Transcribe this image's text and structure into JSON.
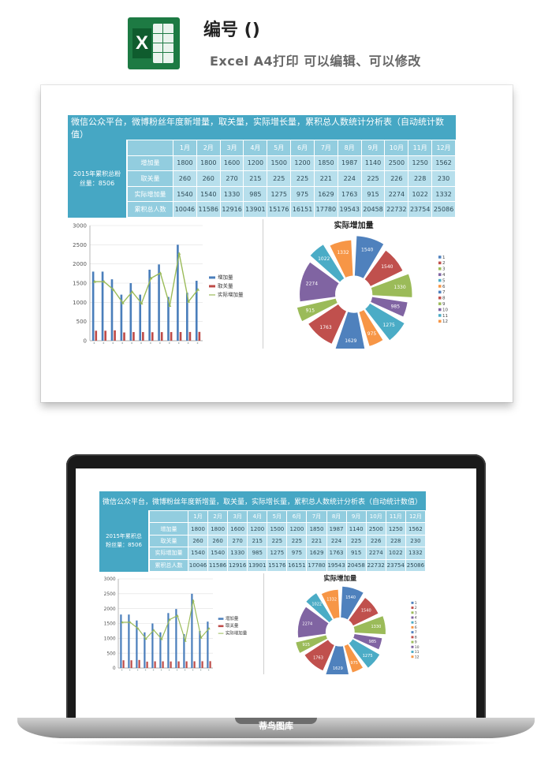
{
  "header": {
    "title": "编号 ()",
    "subtitle": "Excel A4打印 可以编辑、可以修改",
    "logo_letter": "X"
  },
  "sheet": {
    "banner": "微信公众平台，微博粉丝年度新增量，取关量，实际增长量，累积总人数统计分析表（自动统计数值）",
    "left_label": "2015年累积总粉丝量：8506",
    "months": [
      "1月",
      "2月",
      "3月",
      "4月",
      "5月",
      "6月",
      "7月",
      "8月",
      "9月",
      "10月",
      "11月",
      "12月"
    ],
    "rows": [
      {
        "label": "增加量",
        "values": [
          "1800",
          "1800",
          "1600",
          "1200",
          "1500",
          "1200",
          "1850",
          "1987",
          "1140",
          "2500",
          "1250",
          "1562"
        ]
      },
      {
        "label": "取关量",
        "values": [
          "260",
          "260",
          "270",
          "215",
          "225",
          "225",
          "221",
          "224",
          "225",
          "226",
          "228",
          "230"
        ]
      },
      {
        "label": "实际增加量",
        "values": [
          "1540",
          "1540",
          "1330",
          "985",
          "1275",
          "975",
          "1629",
          "1763",
          "915",
          "2274",
          "1022",
          "1332"
        ]
      },
      {
        "label": "累积总人数",
        "values": [
          "10046",
          "11586",
          "12916",
          "13901",
          "15176",
          "16151",
          "17780",
          "19543",
          "20458",
          "22732",
          "23754",
          "25086"
        ]
      }
    ]
  },
  "bar_chart": {
    "yticks": [
      "0",
      "500",
      "1000",
      "1500",
      "2000",
      "2500",
      "3000"
    ],
    "legend": [
      "增加量",
      "取关量",
      "实际增加量"
    ]
  },
  "pie_chart": {
    "title": "实际增加量",
    "legend": [
      "1",
      "2",
      "3",
      "4",
      "5",
      "6",
      "7",
      "8",
      "9",
      "10",
      "11",
      "12"
    ]
  },
  "chart_data": [
    {
      "type": "bar",
      "categories": [
        "1",
        "2",
        "3",
        "4",
        "5",
        "6",
        "7",
        "8",
        "9",
        "10",
        "11",
        "12"
      ],
      "series": [
        {
          "name": "增加量",
          "values": [
            1800,
            1800,
            1600,
            1200,
            1500,
            1200,
            1850,
            1987,
            1140,
            2500,
            1250,
            1562
          ]
        },
        {
          "name": "取关量",
          "values": [
            260,
            260,
            270,
            215,
            225,
            225,
            221,
            224,
            225,
            226,
            228,
            230
          ]
        },
        {
          "name": "实际增加量",
          "values": [
            1540,
            1540,
            1330,
            985,
            1275,
            975,
            1629,
            1763,
            915,
            2274,
            1022,
            1332
          ]
        }
      ],
      "ylim": [
        0,
        3000
      ],
      "legend": "right",
      "grid": true
    },
    {
      "type": "pie",
      "title": "实际增加量",
      "categories": [
        "1",
        "2",
        "3",
        "4",
        "5",
        "6",
        "7",
        "8",
        "9",
        "10",
        "11",
        "12"
      ],
      "values": [
        1540,
        1540,
        1330,
        985,
        1275,
        975,
        1629,
        1763,
        915,
        2274,
        1022,
        1332
      ],
      "legend": "right"
    }
  ],
  "colors": {
    "banner": "#46a7c4",
    "header_cell": "#92cddf",
    "data_cell": "#b7dfec",
    "bar_blue": "#4a7ebb",
    "bar_red": "#be4b48",
    "line_green": "#9bbb59",
    "pie": [
      "#4f81bd",
      "#c0504d",
      "#9bbb59",
      "#8064a2",
      "#4bacc6",
      "#f79646",
      "#4f81bd",
      "#c0504d",
      "#9bbb59",
      "#8064a2",
      "#4bacc6",
      "#f79646"
    ]
  },
  "laptop": {
    "brand": "蒂鸟图库"
  }
}
